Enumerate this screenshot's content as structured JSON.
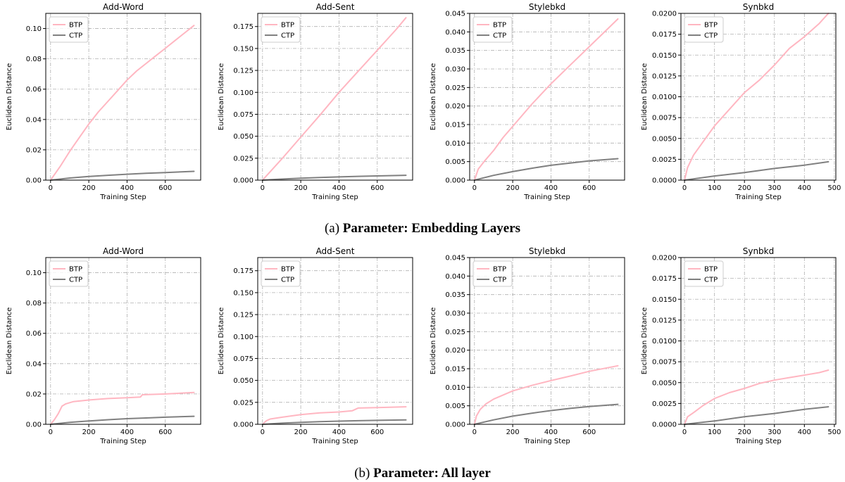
{
  "captions": {
    "top_prefix": "(a)",
    "top_title": "Parameter: Embedding Layers",
    "bottom_prefix": "(b)",
    "bottom_title": "Parameter: All layer"
  },
  "colors": {
    "btp": "#ffb6c1",
    "ctp": "#808080",
    "grid": "#b0b0b0"
  },
  "chart_data": [
    {
      "type": "line",
      "title": "Add-Word",
      "xlabel": "Training Step",
      "ylabel": "Euclidean Distance",
      "xlim": [
        -25,
        785
      ],
      "ylim": [
        0,
        0.11
      ],
      "xticks": [
        0,
        200,
        400,
        600
      ],
      "xtick_labels": [
        "0",
        "200",
        "400",
        "600"
      ],
      "yticks": [
        0,
        0.02,
        0.04,
        0.06,
        0.08,
        0.1
      ],
      "ytick_labels": [
        "0.00",
        "0.02",
        "0.04",
        "0.06",
        "0.08",
        "0.10"
      ],
      "grid": true,
      "legend_position": "top-left",
      "series": [
        {
          "name": "BTP",
          "x": [
            0,
            50,
            100,
            150,
            200,
            250,
            300,
            350,
            400,
            450,
            500,
            550,
            600,
            650,
            700,
            750
          ],
          "y": [
            0,
            0.009,
            0.019,
            0.028,
            0.037,
            0.045,
            0.052,
            0.059,
            0.066,
            0.072,
            0.077,
            0.082,
            0.087,
            0.092,
            0.097,
            0.102
          ]
        },
        {
          "name": "CTP",
          "x": [
            0,
            100,
            200,
            300,
            400,
            500,
            600,
            750
          ],
          "y": [
            0,
            0.0014,
            0.0024,
            0.0032,
            0.0039,
            0.0045,
            0.005,
            0.0058
          ]
        }
      ]
    },
    {
      "type": "line",
      "title": "Add-Sent",
      "xlabel": "Training Step",
      "ylabel": "Euclidean Distance",
      "xlim": [
        -25,
        785
      ],
      "ylim": [
        0,
        0.19
      ],
      "xticks": [
        0,
        200,
        400,
        600
      ],
      "xtick_labels": [
        "0",
        "200",
        "400",
        "600"
      ],
      "yticks": [
        0,
        0.025,
        0.05,
        0.075,
        0.1,
        0.125,
        0.15,
        0.175
      ],
      "ytick_labels": [
        "0.000",
        "0.025",
        "0.050",
        "0.075",
        "0.100",
        "0.125",
        "0.150",
        "0.175"
      ],
      "grid": true,
      "legend_position": "top-left",
      "series": [
        {
          "name": "BTP",
          "x": [
            0,
            100,
            200,
            300,
            400,
            500,
            600,
            700,
            750
          ],
          "y": [
            0,
            0.024,
            0.049,
            0.074,
            0.1,
            0.124,
            0.148,
            0.172,
            0.185
          ]
        },
        {
          "name": "CTP",
          "x": [
            0,
            100,
            200,
            300,
            400,
            500,
            600,
            750
          ],
          "y": [
            0,
            0.0012,
            0.0022,
            0.003,
            0.0037,
            0.0043,
            0.0048,
            0.0055
          ]
        }
      ]
    },
    {
      "type": "line",
      "title": "Stylebkd",
      "xlabel": "Training Step",
      "ylabel": "Euclidean Distance",
      "xlim": [
        -25,
        785
      ],
      "ylim": [
        0,
        0.045
      ],
      "xticks": [
        0,
        200,
        400,
        600
      ],
      "xtick_labels": [
        "0",
        "200",
        "400",
        "600"
      ],
      "yticks": [
        0,
        0.005,
        0.01,
        0.015,
        0.02,
        0.025,
        0.03,
        0.035,
        0.04,
        0.045
      ],
      "ytick_labels": [
        "0.000",
        "0.005",
        "0.010",
        "0.015",
        "0.020",
        "0.025",
        "0.030",
        "0.035",
        "0.040",
        "0.045"
      ],
      "grid": true,
      "legend_position": "top-left",
      "series": [
        {
          "name": "BTP",
          "x": [
            0,
            20,
            50,
            100,
            150,
            200,
            300,
            400,
            500,
            600,
            700,
            750
          ],
          "y": [
            0,
            0.003,
            0.005,
            0.008,
            0.0115,
            0.0145,
            0.0205,
            0.026,
            0.031,
            0.036,
            0.041,
            0.0435
          ]
        },
        {
          "name": "CTP",
          "x": [
            0,
            100,
            200,
            300,
            400,
            500,
            600,
            750
          ],
          "y": [
            0,
            0.0013,
            0.0023,
            0.0032,
            0.004,
            0.0046,
            0.0052,
            0.0058
          ]
        }
      ]
    },
    {
      "type": "line",
      "title": "Synbkd",
      "xlabel": "Training Step",
      "ylabel": "Euclidean Distance",
      "xlim": [
        -12,
        505
      ],
      "ylim": [
        0,
        0.02
      ],
      "xticks": [
        0,
        100,
        200,
        300,
        400,
        500
      ],
      "xtick_labels": [
        "0",
        "100",
        "200",
        "300",
        "400",
        "500"
      ],
      "yticks": [
        0,
        0.0025,
        0.005,
        0.0075,
        0.01,
        0.0125,
        0.015,
        0.0175,
        0.02
      ],
      "ytick_labels": [
        "0.0000",
        "0.0025",
        "0.0050",
        "0.0075",
        "0.0100",
        "0.0125",
        "0.0150",
        "0.0175",
        "0.0200"
      ],
      "grid": true,
      "legend_position": "top-left",
      "series": [
        {
          "name": "BTP",
          "x": [
            0,
            10,
            30,
            60,
            100,
            150,
            200,
            250,
            300,
            350,
            400,
            450,
            480
          ],
          "y": [
            0,
            0.0015,
            0.003,
            0.0045,
            0.0065,
            0.0085,
            0.0105,
            0.012,
            0.0138,
            0.0158,
            0.0172,
            0.0188,
            0.02
          ]
        },
        {
          "name": "CTP",
          "x": [
            0,
            100,
            200,
            300,
            400,
            480
          ],
          "y": [
            0,
            0.0005,
            0.0009,
            0.0014,
            0.0018,
            0.0022
          ]
        }
      ]
    },
    {
      "type": "line",
      "title": "Add-Word",
      "xlabel": "Training Step",
      "ylabel": "Euclidean Distance",
      "xlim": [
        -25,
        785
      ],
      "ylim": [
        0,
        0.11
      ],
      "xticks": [
        0,
        200,
        400,
        600
      ],
      "xtick_labels": [
        "0",
        "200",
        "400",
        "600"
      ],
      "yticks": [
        0,
        0.02,
        0.04,
        0.06,
        0.08,
        0.1
      ],
      "ytick_labels": [
        "0.00",
        "0.02",
        "0.04",
        "0.06",
        "0.08",
        "0.10"
      ],
      "grid": true,
      "legend_position": "top-left",
      "series": [
        {
          "name": "BTP",
          "x": [
            0,
            20,
            40,
            60,
            80,
            120,
            200,
            300,
            400,
            470,
            480,
            600,
            750
          ],
          "y": [
            0,
            0.003,
            0.007,
            0.012,
            0.0135,
            0.015,
            0.016,
            0.017,
            0.0175,
            0.018,
            0.0195,
            0.02,
            0.021
          ]
        },
        {
          "name": "CTP",
          "x": [
            0,
            100,
            200,
            300,
            400,
            500,
            600,
            750
          ],
          "y": [
            0,
            0.0013,
            0.0022,
            0.003,
            0.0037,
            0.0042,
            0.0047,
            0.0053
          ]
        }
      ]
    },
    {
      "type": "line",
      "title": "Add-Sent",
      "xlabel": "Training Step",
      "ylabel": "Euclidean Distance",
      "xlim": [
        -25,
        785
      ],
      "ylim": [
        0,
        0.19
      ],
      "xticks": [
        0,
        200,
        400,
        600
      ],
      "xtick_labels": [
        "0",
        "200",
        "400",
        "600"
      ],
      "yticks": [
        0,
        0.025,
        0.05,
        0.075,
        0.1,
        0.125,
        0.15,
        0.175
      ],
      "ytick_labels": [
        "0.000",
        "0.025",
        "0.050",
        "0.075",
        "0.100",
        "0.125",
        "0.150",
        "0.175"
      ],
      "grid": true,
      "legend_position": "top-left",
      "series": [
        {
          "name": "BTP",
          "x": [
            0,
            20,
            40,
            100,
            200,
            300,
            400,
            470,
            500,
            600,
            750
          ],
          "y": [
            0,
            0.004,
            0.006,
            0.008,
            0.011,
            0.013,
            0.014,
            0.0155,
            0.0185,
            0.019,
            0.02
          ]
        },
        {
          "name": "CTP",
          "x": [
            0,
            100,
            200,
            300,
            400,
            500,
            600,
            750
          ],
          "y": [
            0,
            0.0013,
            0.0022,
            0.003,
            0.0036,
            0.0041,
            0.0045,
            0.005
          ]
        }
      ]
    },
    {
      "type": "line",
      "title": "Stylebkd",
      "xlabel": "Training Step",
      "ylabel": "Euclidean Distance",
      "xlim": [
        -25,
        785
      ],
      "ylim": [
        0,
        0.045
      ],
      "xticks": [
        0,
        200,
        400,
        600
      ],
      "xtick_labels": [
        "0",
        "200",
        "400",
        "600"
      ],
      "yticks": [
        0,
        0.005,
        0.01,
        0.015,
        0.02,
        0.025,
        0.03,
        0.035,
        0.04,
        0.045
      ],
      "ytick_labels": [
        "0.000",
        "0.005",
        "0.010",
        "0.015",
        "0.020",
        "0.025",
        "0.030",
        "0.035",
        "0.040",
        "0.045"
      ],
      "grid": true,
      "legend_position": "top-left",
      "series": [
        {
          "name": "BTP",
          "x": [
            0,
            10,
            30,
            60,
            100,
            200,
            300,
            400,
            500,
            600,
            750
          ],
          "y": [
            0,
            0.0022,
            0.004,
            0.0055,
            0.0068,
            0.009,
            0.0105,
            0.0118,
            0.013,
            0.0143,
            0.0158
          ]
        },
        {
          "name": "CTP",
          "x": [
            0,
            100,
            200,
            300,
            400,
            500,
            600,
            750
          ],
          "y": [
            0,
            0.0012,
            0.0022,
            0.003,
            0.0037,
            0.0043,
            0.0048,
            0.0054
          ]
        }
      ]
    },
    {
      "type": "line",
      "title": "Synbkd",
      "xlabel": "Training Step",
      "ylabel": "Euclidean Distance",
      "xlim": [
        -12,
        505
      ],
      "ylim": [
        0,
        0.02
      ],
      "xticks": [
        0,
        100,
        200,
        300,
        400,
        500
      ],
      "xtick_labels": [
        "0",
        "100",
        "200",
        "300",
        "400",
        "500"
      ],
      "yticks": [
        0,
        0.0025,
        0.005,
        0.0075,
        0.01,
        0.0125,
        0.015,
        0.0175,
        0.02
      ],
      "ytick_labels": [
        "0.0000",
        "0.0025",
        "0.0050",
        "0.0075",
        "0.0100",
        "0.0125",
        "0.0150",
        "0.0175",
        "0.0200"
      ],
      "grid": true,
      "legend_position": "top-left",
      "series": [
        {
          "name": "BTP",
          "x": [
            0,
            10,
            30,
            60,
            100,
            150,
            200,
            250,
            300,
            350,
            400,
            450,
            480
          ],
          "y": [
            0,
            0.0009,
            0.0014,
            0.0022,
            0.0031,
            0.0038,
            0.0043,
            0.0049,
            0.0053,
            0.0056,
            0.0059,
            0.0062,
            0.0065
          ]
        },
        {
          "name": "CTP",
          "x": [
            0,
            100,
            200,
            300,
            400,
            480
          ],
          "y": [
            0,
            0.0004,
            0.0009,
            0.0013,
            0.0018,
            0.0021
          ]
        }
      ]
    }
  ]
}
